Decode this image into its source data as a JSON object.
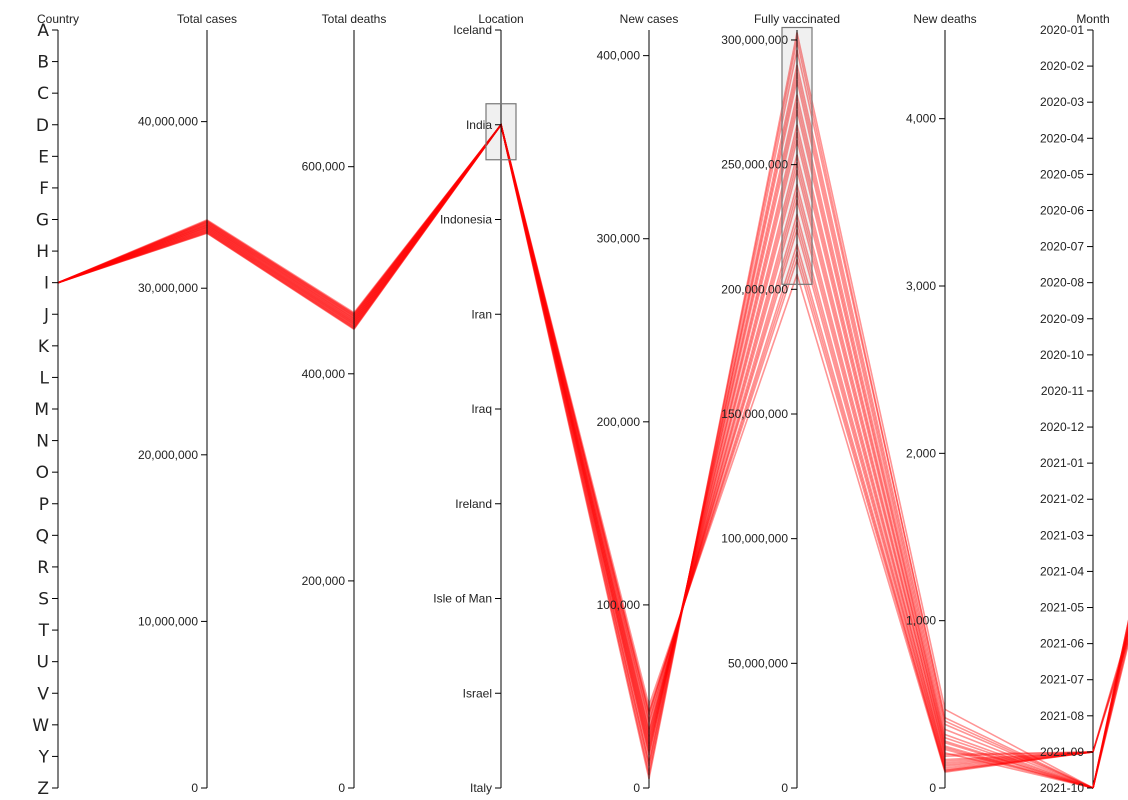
{
  "chart_data": {
    "type": "parallel-coordinates",
    "line_color": "#ff0000",
    "axes": [
      {
        "key": "country",
        "title": "Country",
        "kind": "categorical",
        "ticks": [
          "A",
          "B",
          "C",
          "D",
          "E",
          "F",
          "G",
          "H",
          "I",
          "J",
          "K",
          "L",
          "M",
          "N",
          "O",
          "P",
          "Q",
          "R",
          "S",
          "T",
          "U",
          "V",
          "W",
          "Y",
          "Z"
        ]
      },
      {
        "key": "total_cases",
        "title": "Total cases",
        "kind": "linear",
        "domain": [
          0,
          45500000
        ],
        "ticks": [
          0,
          10000000,
          20000000,
          30000000,
          40000000
        ],
        "tick_labels": [
          "0",
          "10,000,000",
          "20,000,000",
          "30,000,000",
          "40,000,000"
        ]
      },
      {
        "key": "total_deaths",
        "title": "Total deaths",
        "kind": "linear",
        "domain": [
          0,
          732000
        ],
        "ticks": [
          0,
          200000,
          400000,
          600000
        ],
        "tick_labels": [
          "0",
          "200,000",
          "400,000",
          "600,000"
        ]
      },
      {
        "key": "location",
        "title": "Location",
        "kind": "categorical",
        "ticks": [
          "Iceland",
          "India",
          "Indonesia",
          "Iran",
          "Iraq",
          "Ireland",
          "Isle of Man",
          "Israel",
          "Italy"
        ],
        "brush": [
          "India"
        ]
      },
      {
        "key": "new_cases",
        "title": "New cases",
        "kind": "linear",
        "domain": [
          0,
          414000
        ],
        "ticks": [
          0,
          100000,
          200000,
          300000,
          400000
        ],
        "tick_labels": [
          "0",
          "100,000",
          "200,000",
          "300,000",
          "400,000"
        ]
      },
      {
        "key": "fully_vaccinated",
        "title": "Fully vaccinated",
        "kind": "linear",
        "domain": [
          0,
          304000000
        ],
        "ticks": [
          0,
          50000000,
          100000000,
          150000000,
          200000000,
          250000000,
          300000000
        ],
        "tick_labels": [
          "0",
          "50,000,000",
          "100,000,000",
          "150,000,000",
          "200,000,000",
          "250,000,000",
          "300,000,000"
        ],
        "brush": [
          202000000,
          305000000
        ]
      },
      {
        "key": "new_deaths",
        "title": "New deaths",
        "kind": "linear",
        "domain": [
          0,
          4530
        ],
        "ticks": [
          0,
          1000,
          2000,
          3000,
          4000
        ],
        "tick_labels": [
          "0",
          "1,000",
          "2,000",
          "3,000",
          "4,000"
        ]
      },
      {
        "key": "month",
        "title": "Month",
        "kind": "categorical",
        "ticks": [
          "2020-01",
          "2020-02",
          "2020-03",
          "2020-04",
          "2020-05",
          "2020-06",
          "2020-07",
          "2020-08",
          "2020-09",
          "2020-10",
          "2020-11",
          "2020-12",
          "2021-01",
          "2021-02",
          "2021-03",
          "2021-04",
          "2021-05",
          "2021-06",
          "2021-07",
          "2021-08",
          "2021-09",
          "2021-10"
        ]
      }
    ],
    "records": [
      {
        "country": "I",
        "total_cases": 33300000,
        "total_deaths": 443000,
        "location": "India",
        "new_cases": 5000,
        "fully_vaccinated": 303000000,
        "new_deaths": 470,
        "month": "2021-10"
      },
      {
        "country": "I",
        "total_cases": 33350000,
        "total_deaths": 444000,
        "location": "India",
        "new_cases": 9000,
        "fully_vaccinated": 296000000,
        "new_deaths": 420,
        "month": "2021-10"
      },
      {
        "country": "I",
        "total_cases": 33400000,
        "total_deaths": 445000,
        "location": "India",
        "new_cases": 12000,
        "fully_vaccinated": 290000000,
        "new_deaths": 380,
        "month": "2021-10"
      },
      {
        "country": "I",
        "total_cases": 33450000,
        "total_deaths": 446000,
        "location": "India",
        "new_cases": 15000,
        "fully_vaccinated": 284000000,
        "new_deaths": 320,
        "month": "2021-10"
      },
      {
        "country": "I",
        "total_cases": 33500000,
        "total_deaths": 447000,
        "location": "India",
        "new_cases": 18000,
        "fully_vaccinated": 278000000,
        "new_deaths": 300,
        "month": "2021-10"
      },
      {
        "country": "I",
        "total_cases": 33550000,
        "total_deaths": 448000,
        "location": "India",
        "new_cases": 20000,
        "fully_vaccinated": 272000000,
        "new_deaths": 270,
        "month": "2021-10"
      },
      {
        "country": "I",
        "total_cases": 33600000,
        "total_deaths": 449000,
        "location": "India",
        "new_cases": 22000,
        "fully_vaccinated": 266000000,
        "new_deaths": 250,
        "month": "2021-10"
      },
      {
        "country": "I",
        "total_cases": 33650000,
        "total_deaths": 450000,
        "location": "India",
        "new_cases": 24000,
        "fully_vaccinated": 260000000,
        "new_deaths": 230,
        "month": "2021-10"
      },
      {
        "country": "I",
        "total_cases": 33700000,
        "total_deaths": 451000,
        "location": "India",
        "new_cases": 26000,
        "fully_vaccinated": 254000000,
        "new_deaths": 210,
        "month": "2021-10"
      },
      {
        "country": "I",
        "total_cases": 33750000,
        "total_deaths": 452000,
        "location": "India",
        "new_cases": 28000,
        "fully_vaccinated": 248000000,
        "new_deaths": 190,
        "month": "2021-09"
      },
      {
        "country": "I",
        "total_cases": 33800000,
        "total_deaths": 453000,
        "location": "India",
        "new_cases": 30000,
        "fully_vaccinated": 242000000,
        "new_deaths": 170,
        "month": "2021-09"
      },
      {
        "country": "I",
        "total_cases": 33850000,
        "total_deaths": 454000,
        "location": "India",
        "new_cases": 32000,
        "fully_vaccinated": 236000000,
        "new_deaths": 150,
        "month": "2021-09"
      },
      {
        "country": "I",
        "total_cases": 33900000,
        "total_deaths": 455000,
        "location": "India",
        "new_cases": 35000,
        "fully_vaccinated": 230000000,
        "new_deaths": 140,
        "month": "2021-09"
      },
      {
        "country": "I",
        "total_cases": 33950000,
        "total_deaths": 456000,
        "location": "India",
        "new_cases": 38000,
        "fully_vaccinated": 224000000,
        "new_deaths": 120,
        "month": "2021-09"
      },
      {
        "country": "I",
        "total_cases": 34000000,
        "total_deaths": 457000,
        "location": "India",
        "new_cases": 40000,
        "fully_vaccinated": 218000000,
        "new_deaths": 110,
        "month": "2021-09"
      },
      {
        "country": "I",
        "total_cases": 34050000,
        "total_deaths": 458000,
        "location": "India",
        "new_cases": 42000,
        "fully_vaccinated": 212000000,
        "new_deaths": 100,
        "month": "2021-09"
      },
      {
        "country": "I",
        "total_cases": 34100000,
        "total_deaths": 459000,
        "location": "India",
        "new_cases": 45000,
        "fully_vaccinated": 206000000,
        "new_deaths": 95,
        "month": "2021-09"
      },
      {
        "country": "I",
        "total_cases": 33320000,
        "total_deaths": 443500,
        "location": "India",
        "new_cases": 7000,
        "fully_vaccinated": 300000000,
        "new_deaths": 400,
        "month": "2021-10"
      },
      {
        "country": "I",
        "total_cases": 33420000,
        "total_deaths": 445500,
        "location": "India",
        "new_cases": 13000,
        "fully_vaccinated": 287000000,
        "new_deaths": 350,
        "month": "2021-10"
      },
      {
        "country": "I",
        "total_cases": 33520000,
        "total_deaths": 447500,
        "location": "India",
        "new_cases": 19000,
        "fully_vaccinated": 275000000,
        "new_deaths": 280,
        "month": "2021-10"
      },
      {
        "country": "I",
        "total_cases": 33620000,
        "total_deaths": 449500,
        "location": "India",
        "new_cases": 23000,
        "fully_vaccinated": 263000000,
        "new_deaths": 240,
        "month": "2021-10"
      },
      {
        "country": "I",
        "total_cases": 33720000,
        "total_deaths": 451500,
        "location": "India",
        "new_cases": 27000,
        "fully_vaccinated": 251000000,
        "new_deaths": 200,
        "month": "2021-09"
      },
      {
        "country": "I",
        "total_cases": 33820000,
        "total_deaths": 453500,
        "location": "India",
        "new_cases": 31000,
        "fully_vaccinated": 239000000,
        "new_deaths": 160,
        "month": "2021-09"
      },
      {
        "country": "I",
        "total_cases": 33920000,
        "total_deaths": 455500,
        "location": "India",
        "new_cases": 36000,
        "fully_vaccinated": 227000000,
        "new_deaths": 130,
        "month": "2021-09"
      },
      {
        "country": "I",
        "total_cases": 34020000,
        "total_deaths": 457500,
        "location": "India",
        "new_cases": 41000,
        "fully_vaccinated": 215000000,
        "new_deaths": 105,
        "month": "2021-09"
      }
    ]
  }
}
